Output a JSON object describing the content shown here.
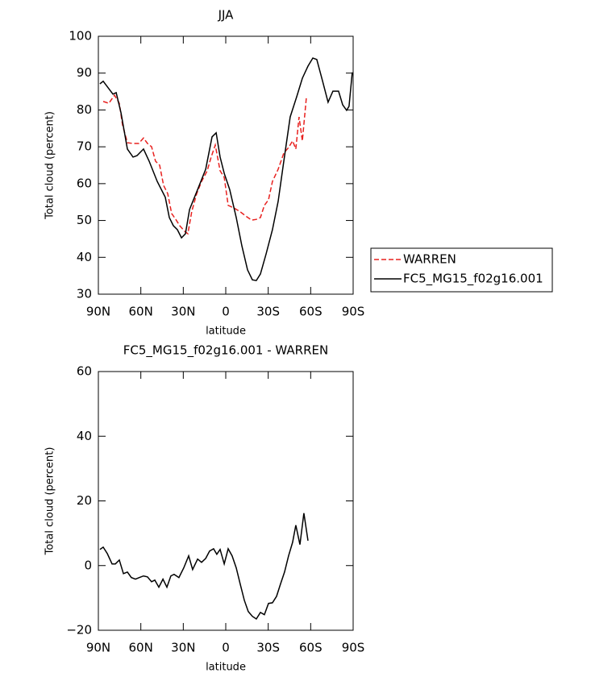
{
  "chart_data": [
    {
      "type": "line",
      "title": "JJA",
      "xlabel": "latitude",
      "ylabel": "Total cloud (percent)",
      "xlim": [
        90,
        -90
      ],
      "ylim": [
        30,
        100
      ],
      "xticks": [
        {
          "value": 90,
          "label": "90N"
        },
        {
          "value": 60,
          "label": "60N"
        },
        {
          "value": 30,
          "label": "30N"
        },
        0,
        {
          "value": -30,
          "label": "30S"
        },
        {
          "value": -60,
          "label": "60S"
        },
        {
          "value": -90,
          "label": "90S"
        }
      ],
      "yticks": [
        30,
        40,
        50,
        60,
        70,
        80,
        90,
        100
      ],
      "legend": "right",
      "series": [
        {
          "name": "WARREN",
          "color": "#e8211f",
          "dash": true,
          "x": [
            86.6,
            82.6,
            78.6,
            75.2,
            72.9,
            69.5,
            65.5,
            61.5,
            58.1,
            55.3,
            52.4,
            49.6,
            46.7,
            43.9,
            41,
            38.2,
            35.3,
            32.5,
            29.1,
            26.8,
            24,
            20.5,
            17.1,
            13.1,
            10.3,
            7.4,
            4,
            1.1,
            -1.7,
            -5.7,
            -9.7,
            -14.2,
            -18.2,
            -21.6,
            -24.5,
            -27.3,
            -30.2,
            -33,
            -37,
            -41,
            -44.4,
            -47.2,
            -49.5,
            -51.8,
            -54.1,
            -56.9
          ],
          "values": [
            82.3,
            81.8,
            84,
            81.8,
            75.9,
            71.1,
            70.9,
            70.9,
            72.4,
            70.9,
            70,
            66.1,
            65,
            59.5,
            57.3,
            51.9,
            50.3,
            48.6,
            47.1,
            46.4,
            52.5,
            57.3,
            60.6,
            63.5,
            67.2,
            70.5,
            63.5,
            61.7,
            54.1,
            53.4,
            52.5,
            51.2,
            50.1,
            50.3,
            50.8,
            54.1,
            55.6,
            60.6,
            63.9,
            68.3,
            69.8,
            71.6,
            69.4,
            78.1,
            71.6,
            83.2
          ]
        },
        {
          "name": "FC5_MG15_f02g16.001",
          "color": "#000000",
          "dash": false,
          "x": [
            88.9,
            86.6,
            79.7,
            77.4,
            74,
            69.5,
            65.5,
            62.7,
            58.1,
            54.1,
            48.4,
            42.7,
            39.9,
            37,
            34.2,
            31.3,
            28.5,
            25.6,
            19.9,
            14.2,
            9.7,
            6.8,
            4,
            1.1,
            -2.8,
            -7.4,
            -11.4,
            -15.4,
            -18.8,
            -21.6,
            -24.5,
            -28.5,
            -33,
            -37,
            -41,
            -45.5,
            -50.1,
            -54.1,
            -58.1,
            -61.5,
            -64.3,
            -68.3,
            -72.3,
            -75.7,
            -79.7,
            -82.6,
            -85.4,
            -87.1,
            -89.4
          ],
          "values": [
            87.1,
            87.8,
            84.3,
            84.7,
            79.2,
            69.4,
            67.2,
            67.6,
            69.4,
            66.1,
            60.6,
            56.3,
            50.8,
            48.6,
            47.5,
            45.3,
            46.4,
            53,
            58.4,
            63.9,
            72.7,
            73.8,
            67.2,
            62.8,
            58.4,
            50.8,
            43.1,
            36.6,
            33.9,
            33.7,
            35.5,
            40.9,
            47.5,
            55.2,
            66.1,
            78.1,
            83.6,
            88.6,
            91.9,
            94.1,
            93.7,
            88,
            82.1,
            85.1,
            85.1,
            81.4,
            79.9,
            81,
            90.2
          ]
        }
      ]
    },
    {
      "type": "line",
      "title": "FC5_MG15_f02g16.001 - WARREN",
      "xlabel": "latitude",
      "ylabel": "Total cloud (percent)",
      "xlim": [
        90,
        -90
      ],
      "ylim": [
        -20,
        60
      ],
      "xticks": [
        {
          "value": 90,
          "label": "90N"
        },
        {
          "value": 60,
          "label": "60N"
        },
        {
          "value": 30,
          "label": "30N"
        },
        0,
        {
          "value": -30,
          "label": "30S"
        },
        {
          "value": -60,
          "label": "60S"
        },
        {
          "value": -90,
          "label": "90S"
        }
      ],
      "yticks": [
        {
          "value": -20,
          "label": "−20"
        },
        0,
        20,
        40,
        60
      ],
      "series": [
        {
          "color": "#000000",
          "x": [
            88.9,
            86.6,
            83.7,
            80.3,
            78,
            75.2,
            72.3,
            69.5,
            66.7,
            63.8,
            61,
            58.1,
            55.3,
            52.4,
            50.1,
            47.3,
            44.4,
            41.6,
            38.8,
            36.5,
            33.1,
            29.7,
            26.2,
            23.4,
            19.9,
            17.1,
            14.2,
            11.4,
            8.6,
            6.3,
            4,
            1.1,
            -1.7,
            -4.5,
            -7.4,
            -10.2,
            -13.1,
            -15.9,
            -18.8,
            -21.6,
            -24.5,
            -27.3,
            -30.2,
            -33,
            -35.9,
            -38.7,
            -41.5,
            -44.4,
            -47.2,
            -49.5,
            -52.4,
            -55.2,
            -58.1
          ],
          "values": [
            5,
            5.7,
            3.7,
            0.5,
            0.5,
            1.7,
            -2.5,
            -2,
            -3.7,
            -4.2,
            -3.7,
            -3.2,
            -3.5,
            -5,
            -4.5,
            -6.7,
            -4.2,
            -6.7,
            -3.2,
            -2.7,
            -3.7,
            -0.7,
            3,
            -1.2,
            2,
            1,
            2.2,
            4.5,
            5.2,
            3.5,
            5,
            0.5,
            5.2,
            3,
            -0.7,
            -5.7,
            -10.7,
            -14.2,
            -15.7,
            -16.5,
            -14.5,
            -15.2,
            -11.7,
            -11.5,
            -9.5,
            -5.7,
            -2,
            3,
            7.2,
            12.5,
            6.5,
            16.2,
            7.7
          ]
        }
      ]
    }
  ]
}
